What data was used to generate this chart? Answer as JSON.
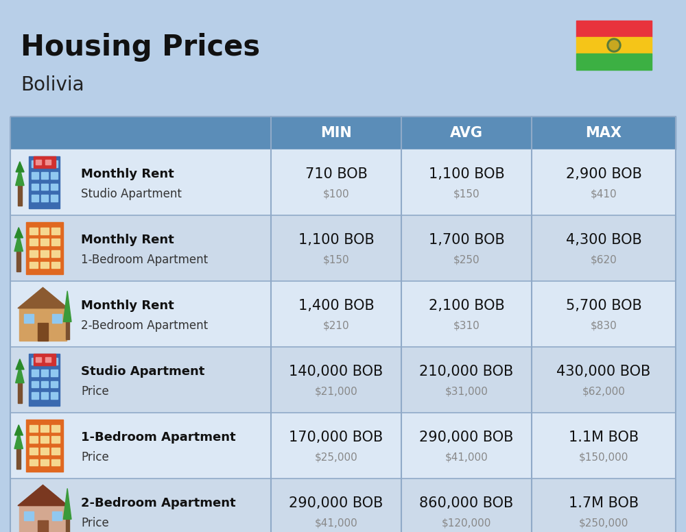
{
  "title": "Housing Prices",
  "subtitle": "Bolivia",
  "bg_color": "#b8cfe8",
  "header_bg": "#5b8db8",
  "header_text_color": "#ffffff",
  "row_colors": [
    "#dce8f5",
    "#ccdaea",
    "#dce8f5",
    "#ccdaea",
    "#dce8f5",
    "#ccdaea"
  ],
  "col_header_labels": [
    "MIN",
    "AVG",
    "MAX"
  ],
  "rows": [
    {
      "icon_type": "blue_office",
      "label_bold": "Monthly Rent",
      "label_light": "Studio Apartment",
      "min_bob": "710 BOB",
      "min_usd": "$100",
      "avg_bob": "1,100 BOB",
      "avg_usd": "$150",
      "max_bob": "2,900 BOB",
      "max_usd": "$410"
    },
    {
      "icon_type": "orange_building",
      "label_bold": "Monthly Rent",
      "label_light": "1-Bedroom Apartment",
      "min_bob": "1,100 BOB",
      "min_usd": "$150",
      "avg_bob": "1,700 BOB",
      "avg_usd": "$250",
      "max_bob": "4,300 BOB",
      "max_usd": "$620"
    },
    {
      "icon_type": "tan_house",
      "label_bold": "Monthly Rent",
      "label_light": "2-Bedroom Apartment",
      "min_bob": "1,400 BOB",
      "min_usd": "$210",
      "avg_bob": "2,100 BOB",
      "avg_usd": "$310",
      "max_bob": "5,700 BOB",
      "max_usd": "$830"
    },
    {
      "icon_type": "blue_office",
      "label_bold": "Studio Apartment",
      "label_light": "Price",
      "min_bob": "140,000 BOB",
      "min_usd": "$21,000",
      "avg_bob": "210,000 BOB",
      "avg_usd": "$31,000",
      "max_bob": "430,000 BOB",
      "max_usd": "$62,000"
    },
    {
      "icon_type": "orange_building",
      "label_bold": "1-Bedroom Apartment",
      "label_light": "Price",
      "min_bob": "170,000 BOB",
      "min_usd": "$25,000",
      "avg_bob": "290,000 BOB",
      "avg_usd": "$41,000",
      "max_bob": "1.1M BOB",
      "max_usd": "$150,000"
    },
    {
      "icon_type": "brown_house",
      "label_bold": "2-Bedroom Apartment",
      "label_light": "Price",
      "min_bob": "290,000 BOB",
      "min_usd": "$41,000",
      "avg_bob": "860,000 BOB",
      "avg_usd": "$120,000",
      "max_bob": "1.7M BOB",
      "max_usd": "$250,000"
    }
  ],
  "flag_colors": [
    "#e8333c",
    "#f5c518",
    "#4caf50"
  ],
  "divider_color": "#90aac8",
  "title_fontsize": 30,
  "subtitle_fontsize": 20,
  "header_fontsize": 15,
  "bob_fontsize": 15,
  "usd_fontsize": 11,
  "label_bold_fontsize": 13,
  "label_light_fontsize": 12
}
